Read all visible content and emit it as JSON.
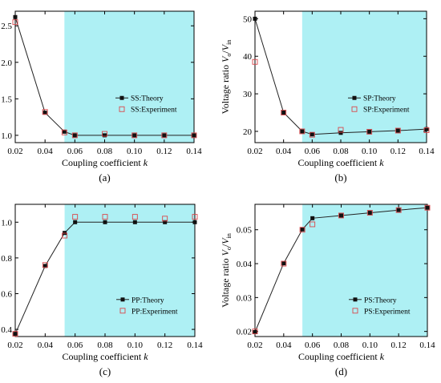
{
  "chart_data": [
    {
      "type": "line",
      "panel": "(a)",
      "xlabel_main": "Coupling coefficient ",
      "xlabel_italic": "k",
      "ylabel_prefix": "Voltage ratio ",
      "ylabel_num": "V",
      "ylabel_num_sub": "o",
      "ylabel_den": "V",
      "ylabel_den_sub": "in",
      "xlim": [
        0.02,
        0.14
      ],
      "ylim": [
        0.9,
        2.7
      ],
      "xticks": [
        "0.02",
        "0.04",
        "0.06",
        "0.08",
        "0.10",
        "0.12",
        "0.14"
      ],
      "xtick_values": [
        0.02,
        0.04,
        0.06,
        0.08,
        0.1,
        0.12,
        0.14
      ],
      "yticks": [
        "1.0",
        "1.5",
        "2.0",
        "2.5"
      ],
      "ytick_values": [
        1.0,
        1.5,
        2.0,
        2.5
      ],
      "shade_from": 0.053,
      "shade_color": "#aef0f4",
      "legend_position": "center-right",
      "series": [
        {
          "name": "SS:Theory",
          "marker": "filled-square",
          "line": true,
          "x": [
            0.02,
            0.04,
            0.053,
            0.06,
            0.08,
            0.1,
            0.12,
            0.14
          ],
          "y": [
            2.62,
            1.31,
            1.05,
            1.0,
            1.0,
            1.0,
            1.0,
            1.0
          ]
        },
        {
          "name": "SS:Experiment",
          "marker": "open-square",
          "line": false,
          "x": [
            0.02,
            0.04,
            0.053,
            0.06,
            0.08,
            0.1,
            0.12,
            0.14
          ],
          "y": [
            2.55,
            1.32,
            1.04,
            1.0,
            1.02,
            1.0,
            1.0,
            1.0
          ]
        }
      ]
    },
    {
      "type": "line",
      "panel": "(b)",
      "xlabel_main": "Coupling coefficient ",
      "xlabel_italic": "k",
      "ylabel_prefix": "Voltage ratio ",
      "ylabel_num": "V",
      "ylabel_num_sub": "o",
      "ylabel_den": "V",
      "ylabel_den_sub": "in",
      "xlim": [
        0.02,
        0.14
      ],
      "ylim": [
        17,
        52
      ],
      "xticks": [
        "0.02",
        "0.04",
        "0.06",
        "0.08",
        "0.10",
        "0.12",
        "0.14"
      ],
      "xtick_values": [
        0.02,
        0.04,
        0.06,
        0.08,
        0.1,
        0.12,
        0.14
      ],
      "yticks": [
        "20",
        "30",
        "40",
        "50"
      ],
      "ytick_values": [
        20,
        30,
        40,
        50
      ],
      "shade_from": 0.053,
      "shade_color": "#aef0f4",
      "legend_position": "center-right",
      "series": [
        {
          "name": "SP:Theory",
          "marker": "filled-square",
          "line": true,
          "x": [
            0.02,
            0.04,
            0.053,
            0.06,
            0.08,
            0.1,
            0.12,
            0.14
          ],
          "y": [
            50,
            25,
            20,
            19.2,
            19.6,
            19.9,
            20.2,
            20.6
          ]
        },
        {
          "name": "SP:Experiment",
          "marker": "open-square",
          "line": false,
          "x": [
            0.02,
            0.04,
            0.053,
            0.06,
            0.08,
            0.1,
            0.12,
            0.14
          ],
          "y": [
            38.5,
            25,
            20,
            19.1,
            20.4,
            19.9,
            20.2,
            20.3
          ]
        }
      ]
    },
    {
      "type": "line",
      "panel": "(c)",
      "xlabel_main": "Coupling coefficient ",
      "xlabel_italic": "k",
      "ylabel_prefix": "Voltage ratio ",
      "ylabel_num": "V",
      "ylabel_num_sub": "o",
      "ylabel_den": "V",
      "ylabel_den_sub": "in",
      "xlim": [
        0.02,
        0.14
      ],
      "ylim": [
        0.36,
        1.1
      ],
      "xticks": [
        "0.02",
        "0.04",
        "0.06",
        "0.08",
        "0.10",
        "0.12",
        "0.14"
      ],
      "xtick_values": [
        0.02,
        0.04,
        0.06,
        0.08,
        0.1,
        0.12,
        0.14
      ],
      "yticks": [
        "0.4",
        "0.6",
        "0.8",
        "1.0"
      ],
      "ytick_values": [
        0.4,
        0.6,
        0.8,
        1.0
      ],
      "shade_from": 0.053,
      "shade_color": "#aef0f4",
      "legend_position": "bottom-right",
      "series": [
        {
          "name": "PP:Theory",
          "marker": "filled-square",
          "line": true,
          "x": [
            0.02,
            0.04,
            0.053,
            0.06,
            0.08,
            0.1,
            0.12,
            0.14
          ],
          "y": [
            0.375,
            0.755,
            0.94,
            1.0,
            1.0,
            1.0,
            1.0,
            1.0
          ]
        },
        {
          "name": "PP:Experiment",
          "marker": "open-square",
          "line": false,
          "x": [
            0.02,
            0.04,
            0.053,
            0.06,
            0.08,
            0.1,
            0.12,
            0.14
          ],
          "y": [
            0.375,
            0.76,
            0.925,
            1.03,
            1.03,
            1.03,
            1.02,
            1.03
          ]
        }
      ]
    },
    {
      "type": "line",
      "panel": "(d)",
      "xlabel_main": "Coupling coefficient ",
      "xlabel_italic": "k",
      "ylabel_prefix": "Voltage ratio ",
      "ylabel_num": "V",
      "ylabel_num_sub": "o",
      "ylabel_den": "V",
      "ylabel_den_sub": "in",
      "xlim": [
        0.02,
        0.14
      ],
      "ylim": [
        0.0185,
        0.0575
      ],
      "xticks": [
        "0.02",
        "0.04",
        "0.06",
        "0.08",
        "0.10",
        "0.12",
        "0.14"
      ],
      "xtick_values": [
        0.02,
        0.04,
        0.06,
        0.08,
        0.1,
        0.12,
        0.14
      ],
      "yticks": [
        "0.02",
        "0.03",
        "0.04",
        "0.05"
      ],
      "ytick_values": [
        0.02,
        0.03,
        0.04,
        0.05
      ],
      "shade_from": 0.053,
      "shade_color": "#aef0f4",
      "legend_position": "bottom-right",
      "series": [
        {
          "name": "PS:Theory",
          "marker": "filled-square",
          "line": true,
          "x": [
            0.02,
            0.04,
            0.053,
            0.06,
            0.08,
            0.1,
            0.12,
            0.14
          ],
          "y": [
            0.0198,
            0.0401,
            0.0501,
            0.0534,
            0.0542,
            0.055,
            0.0558,
            0.0565
          ]
        },
        {
          "name": "PS:Experiment",
          "marker": "open-square",
          "line": false,
          "x": [
            0.02,
            0.04,
            0.053,
            0.06,
            0.08,
            0.1,
            0.12,
            0.14
          ],
          "y": [
            0.02,
            0.04,
            0.05,
            0.0516,
            0.0542,
            0.055,
            0.0558,
            0.0565
          ]
        }
      ]
    }
  ]
}
